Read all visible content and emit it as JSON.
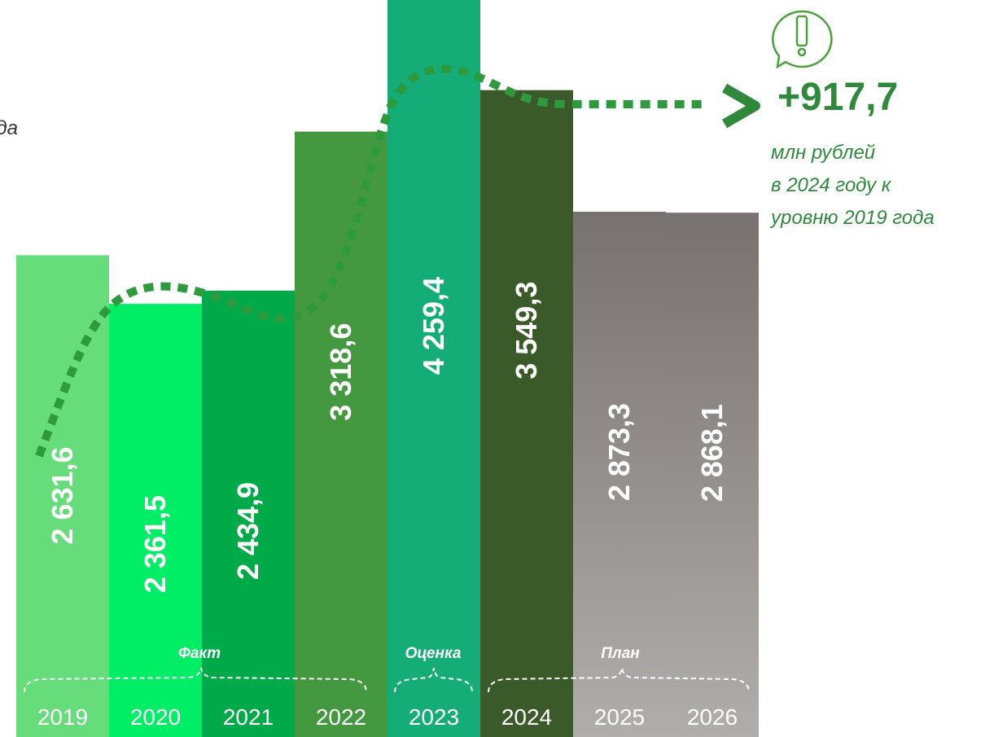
{
  "chart_data": {
    "type": "bar",
    "subtitle": "да",
    "categories": [
      "2019",
      "2020",
      "2021",
      "2022",
      "2023",
      "2024",
      "2025",
      "2026"
    ],
    "values": [
      2631.6,
      2361.5,
      2434.9,
      3318.6,
      4259.4,
      3549.3,
      2873.3,
      2868.1
    ],
    "value_labels": [
      "2 631,6",
      "2 361,5",
      "2 434,9",
      "3 318,6",
      "4 259,4",
      "3 549,3",
      "2 873,3",
      "2 868,1"
    ],
    "colors": [
      "#66dd7a",
      "#00ee66",
      "#00aa48",
      "#449940",
      "#14ad78",
      "#3b5a29",
      "#8f8b89",
      "#8c8886"
    ],
    "ylim": [
      0,
      4050
    ],
    "groups": [
      "Факт",
      "Оценка",
      "План"
    ],
    "annotation": {
      "value": "+917,7",
      "lines": [
        "млн рублей",
        "в 2024 году к",
        "уровню 2019 года"
      ]
    }
  }
}
